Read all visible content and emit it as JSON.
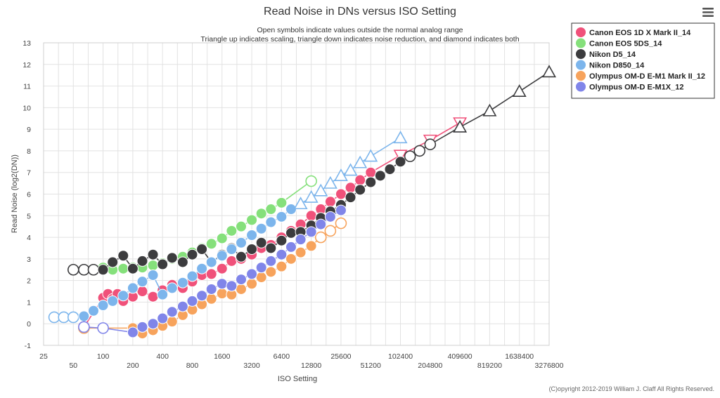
{
  "menu_icon": "hamburger-menu-icon",
  "chart_data": {
    "type": "scatter",
    "title": "Read Noise in DNs versus ISO Setting",
    "subtitle": [
      "Open symbols indicate values outside the normal analog range",
      "Triangle up indicates scaling, triangle down indicates noise reduction, and diamond indicates both"
    ],
    "xlabel": "ISO Setting",
    "ylabel": "Read Noise (log2(DN))",
    "xscale": "log2",
    "xlim": [
      25,
      3276800
    ],
    "ylim": [
      -1,
      13
    ],
    "xticks": [
      25,
      50,
      100,
      200,
      400,
      800,
      1600,
      3200,
      6400,
      12800,
      25600,
      51200,
      102400,
      204800,
      409600,
      819200,
      1638400,
      3276800
    ],
    "xtick_labels": [
      "25",
      "50",
      "100",
      "200",
      "400",
      "800",
      "1600",
      "3200",
      "6400",
      "12800",
      "25600",
      "51200",
      "102400",
      "204800",
      "409600",
      "819200",
      "1638400",
      "3276800"
    ],
    "yticks": [
      -1,
      0,
      1,
      2,
      3,
      4,
      5,
      6,
      7,
      8,
      9,
      10,
      11,
      12,
      13
    ],
    "legend_position": "top-right",
    "credit": "(C)opyright 2012-2019 William J. Claff All Rights Reserved.",
    "series": [
      {
        "name": "Canon EOS 1D X Mark II_14",
        "color": "#f0517a",
        "points": [
          [
            64,
            -0.15,
            "open-circle"
          ],
          [
            100,
            1.2,
            "circle"
          ],
          [
            112,
            1.38,
            "circle"
          ],
          [
            125,
            1.15,
            "circle"
          ],
          [
            140,
            1.38,
            "circle"
          ],
          [
            160,
            1.05,
            "circle"
          ],
          [
            200,
            1.25,
            "circle"
          ],
          [
            250,
            1.5,
            "circle"
          ],
          [
            320,
            1.25,
            "circle"
          ],
          [
            400,
            1.55,
            "circle"
          ],
          [
            500,
            1.8,
            "circle"
          ],
          [
            640,
            1.65,
            "circle"
          ],
          [
            800,
            1.95,
            "circle"
          ],
          [
            1000,
            2.25,
            "circle"
          ],
          [
            1250,
            2.3,
            "circle"
          ],
          [
            1600,
            2.55,
            "circle"
          ],
          [
            2000,
            2.9,
            "circle"
          ],
          [
            2500,
            3.0,
            "circle"
          ],
          [
            3200,
            3.2,
            "circle"
          ],
          [
            4000,
            3.5,
            "circle"
          ],
          [
            5000,
            3.65,
            "circle"
          ],
          [
            6400,
            4.0,
            "circle"
          ],
          [
            8000,
            4.3,
            "circle"
          ],
          [
            10000,
            4.6,
            "circle"
          ],
          [
            12800,
            5.0,
            "circle"
          ],
          [
            16000,
            5.3,
            "circle"
          ],
          [
            20000,
            5.65,
            "circle"
          ],
          [
            25600,
            6.0,
            "circle"
          ],
          [
            32000,
            6.3,
            "circle"
          ],
          [
            40000,
            6.65,
            "circle"
          ],
          [
            51200,
            7.0,
            "circle"
          ],
          [
            102400,
            7.8,
            "triangle-down"
          ],
          [
            204800,
            8.5,
            "triangle-down"
          ],
          [
            409600,
            9.3,
            "triangle-down"
          ]
        ]
      },
      {
        "name": "Canon EOS 5DS_14",
        "color": "#85e07b",
        "points": [
          [
            100,
            2.6,
            "circle"
          ],
          [
            125,
            2.5,
            "circle"
          ],
          [
            160,
            2.55,
            "circle"
          ],
          [
            200,
            2.6,
            "circle"
          ],
          [
            250,
            2.6,
            "circle"
          ],
          [
            320,
            2.7,
            "circle"
          ],
          [
            400,
            2.8,
            "circle"
          ],
          [
            500,
            3.0,
            "circle"
          ],
          [
            640,
            3.1,
            "circle"
          ],
          [
            800,
            3.3,
            "circle"
          ],
          [
            1000,
            3.5,
            "circle"
          ],
          [
            1250,
            3.7,
            "circle"
          ],
          [
            1600,
            3.95,
            "circle"
          ],
          [
            2000,
            4.3,
            "circle"
          ],
          [
            2500,
            4.5,
            "circle"
          ],
          [
            3200,
            4.8,
            "circle"
          ],
          [
            4000,
            5.1,
            "circle"
          ],
          [
            5000,
            5.3,
            "circle"
          ],
          [
            6400,
            5.6,
            "circle"
          ],
          [
            12800,
            6.6,
            "open-circle"
          ]
        ]
      },
      {
        "name": "Nikon D5_14",
        "color": "#3c3c3e",
        "points": [
          [
            50,
            2.5,
            "open-circle"
          ],
          [
            64,
            2.5,
            "open-circle"
          ],
          [
            80,
            2.5,
            "open-circle"
          ],
          [
            100,
            2.5,
            "circle"
          ],
          [
            125,
            2.85,
            "circle"
          ],
          [
            160,
            3.15,
            "circle"
          ],
          [
            200,
            2.55,
            "circle"
          ],
          [
            250,
            2.9,
            "circle"
          ],
          [
            320,
            3.2,
            "circle"
          ],
          [
            400,
            2.75,
            "circle"
          ],
          [
            500,
            3.05,
            "circle"
          ],
          [
            640,
            2.85,
            "circle"
          ],
          [
            800,
            3.2,
            "circle"
          ],
          [
            1000,
            3.45,
            "circle"
          ],
          [
            1250,
            2.85,
            "circle"
          ],
          [
            1600,
            3.2,
            "circle"
          ],
          [
            2000,
            3.5,
            "circle"
          ],
          [
            2500,
            3.1,
            "circle"
          ],
          [
            3200,
            3.45,
            "circle"
          ],
          [
            4000,
            3.75,
            "circle"
          ],
          [
            5000,
            3.5,
            "circle"
          ],
          [
            6400,
            3.85,
            "circle"
          ],
          [
            8000,
            4.2,
            "circle"
          ],
          [
            10000,
            4.25,
            "circle"
          ],
          [
            12800,
            4.55,
            "circle"
          ],
          [
            16000,
            4.9,
            "circle"
          ],
          [
            20000,
            5.2,
            "circle"
          ],
          [
            25600,
            5.5,
            "circle"
          ],
          [
            32000,
            5.85,
            "circle"
          ],
          [
            40000,
            6.2,
            "circle"
          ],
          [
            51200,
            6.55,
            "circle"
          ],
          [
            64000,
            6.85,
            "circle"
          ],
          [
            80000,
            7.15,
            "circle"
          ],
          [
            102400,
            7.5,
            "circle"
          ],
          [
            128000,
            7.75,
            "open-circle"
          ],
          [
            160000,
            8.0,
            "open-circle"
          ],
          [
            204800,
            8.3,
            "open-circle"
          ],
          [
            409600,
            9.1,
            "triangle-up"
          ],
          [
            819200,
            9.85,
            "triangle-up"
          ],
          [
            1638400,
            10.75,
            "triangle-up"
          ],
          [
            3276800,
            11.65,
            "triangle-up"
          ]
        ]
      },
      {
        "name": "Nikon D850_14",
        "color": "#7cb5ec",
        "points": [
          [
            32,
            0.3,
            "open-circle"
          ],
          [
            40,
            0.3,
            "open-circle"
          ],
          [
            50,
            0.3,
            "open-circle"
          ],
          [
            64,
            0.35,
            "circle"
          ],
          [
            80,
            0.6,
            "circle"
          ],
          [
            100,
            0.85,
            "circle"
          ],
          [
            125,
            1.05,
            "circle"
          ],
          [
            160,
            1.3,
            "circle"
          ],
          [
            200,
            1.65,
            "circle"
          ],
          [
            250,
            1.95,
            "circle"
          ],
          [
            320,
            2.25,
            "circle"
          ],
          [
            400,
            1.35,
            "circle"
          ],
          [
            500,
            1.65,
            "circle"
          ],
          [
            640,
            1.9,
            "circle"
          ],
          [
            800,
            2.2,
            "circle"
          ],
          [
            1000,
            2.55,
            "circle"
          ],
          [
            1250,
            2.85,
            "circle"
          ],
          [
            1600,
            3.15,
            "circle"
          ],
          [
            2000,
            3.45,
            "circle"
          ],
          [
            2500,
            3.75,
            "circle"
          ],
          [
            3200,
            4.1,
            "circle"
          ],
          [
            4000,
            4.4,
            "circle"
          ],
          [
            5000,
            4.7,
            "circle"
          ],
          [
            6400,
            4.95,
            "circle"
          ],
          [
            8000,
            5.3,
            "circle"
          ],
          [
            10000,
            5.55,
            "triangle-up"
          ],
          [
            12800,
            5.85,
            "triangle-up"
          ],
          [
            16000,
            6.15,
            "triangle-up"
          ],
          [
            20000,
            6.5,
            "triangle-up"
          ],
          [
            25600,
            6.85,
            "triangle-up"
          ],
          [
            32000,
            7.1,
            "triangle-up"
          ],
          [
            40000,
            7.45,
            "triangle-up"
          ],
          [
            51200,
            7.75,
            "triangle-up"
          ],
          [
            102400,
            8.6,
            "triangle-up"
          ]
        ]
      },
      {
        "name": "Olympus OM-D E-M1 Mark II_12",
        "color": "#f7a35c",
        "points": [
          [
            64,
            -0.2,
            "open-circle"
          ],
          [
            200,
            -0.2,
            "circle"
          ],
          [
            250,
            -0.45,
            "circle"
          ],
          [
            320,
            -0.3,
            "circle"
          ],
          [
            400,
            -0.1,
            "circle"
          ],
          [
            500,
            0.1,
            "circle"
          ],
          [
            640,
            0.4,
            "circle"
          ],
          [
            800,
            0.65,
            "circle"
          ],
          [
            1000,
            0.9,
            "circle"
          ],
          [
            1250,
            1.15,
            "circle"
          ],
          [
            1600,
            1.4,
            "circle"
          ],
          [
            2000,
            1.35,
            "circle"
          ],
          [
            2500,
            1.6,
            "circle"
          ],
          [
            3200,
            1.85,
            "circle"
          ],
          [
            4000,
            2.15,
            "circle"
          ],
          [
            5000,
            2.4,
            "circle"
          ],
          [
            6400,
            2.65,
            "circle"
          ],
          [
            8000,
            3.0,
            "circle"
          ],
          [
            10000,
            3.3,
            "circle"
          ],
          [
            12800,
            3.6,
            "circle"
          ],
          [
            16000,
            4.0,
            "open-circle"
          ],
          [
            20000,
            4.3,
            "open-circle"
          ],
          [
            25600,
            4.65,
            "open-circle"
          ]
        ]
      },
      {
        "name": "Olympus OM-D E-M1X_12",
        "color": "#8085e9",
        "points": [
          [
            64,
            -0.15,
            "open-circle"
          ],
          [
            100,
            -0.2,
            "open-circle"
          ],
          [
            200,
            -0.4,
            "circle"
          ],
          [
            250,
            -0.15,
            "circle"
          ],
          [
            320,
            0.0,
            "circle"
          ],
          [
            400,
            0.25,
            "circle"
          ],
          [
            500,
            0.55,
            "circle"
          ],
          [
            640,
            0.8,
            "circle"
          ],
          [
            800,
            1.05,
            "circle"
          ],
          [
            1000,
            1.3,
            "circle"
          ],
          [
            1250,
            1.6,
            "circle"
          ],
          [
            1600,
            1.85,
            "circle"
          ],
          [
            2000,
            1.75,
            "circle"
          ],
          [
            2500,
            2.05,
            "circle"
          ],
          [
            3200,
            2.3,
            "circle"
          ],
          [
            4000,
            2.6,
            "circle"
          ],
          [
            5000,
            2.9,
            "circle"
          ],
          [
            6400,
            3.2,
            "circle"
          ],
          [
            8000,
            3.55,
            "circle"
          ],
          [
            10000,
            3.9,
            "circle"
          ],
          [
            12800,
            4.25,
            "circle"
          ],
          [
            16000,
            4.6,
            "circle"
          ],
          [
            20000,
            4.95,
            "circle"
          ],
          [
            25600,
            5.25,
            "circle"
          ]
        ]
      }
    ]
  }
}
